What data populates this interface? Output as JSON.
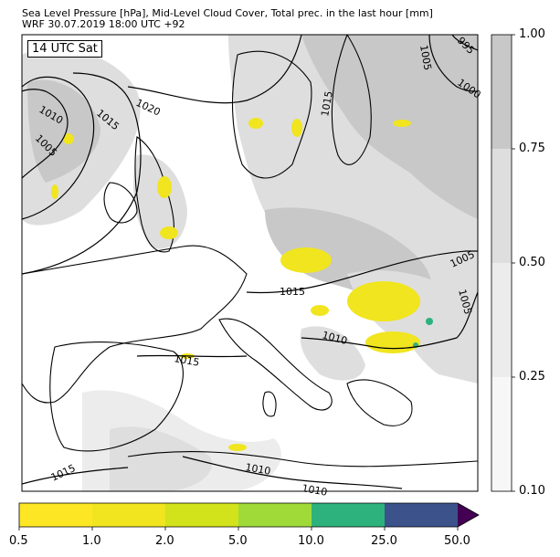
{
  "header": {
    "title_line1": "Sea Level Pressure [hPa], Mid-Level Cloud Cover, Total prec. in the last hour [mm]",
    "title_line2": "WRF 30.07.2019 18:00 UTC +92"
  },
  "time_label": "14 UTC Sat",
  "isobar_labels": [
    "1010",
    "1005",
    "1015",
    "1020",
    "1015",
    "1005",
    "995",
    "1000",
    "1005",
    "1005",
    "1015",
    "1010",
    "1015",
    "1010",
    "1015",
    "1010"
  ],
  "cloud_colorbar": {
    "ticks": [
      "1.00",
      "0.75",
      "0.50",
      "0.25",
      "0.10"
    ],
    "colors": [
      "#c8c8c8",
      "#dedede",
      "#ececec",
      "#f7f7f7"
    ]
  },
  "precip_colorbar": {
    "ticks": [
      "0.5",
      "1.0",
      "2.0",
      "5.0",
      "10.0",
      "25.0",
      "50.0"
    ],
    "colors": [
      "#fde725",
      "#f0e51f",
      "#d2e21b",
      "#a0da39",
      "#2db27d",
      "#3b528b",
      "#440154"
    ]
  }
}
